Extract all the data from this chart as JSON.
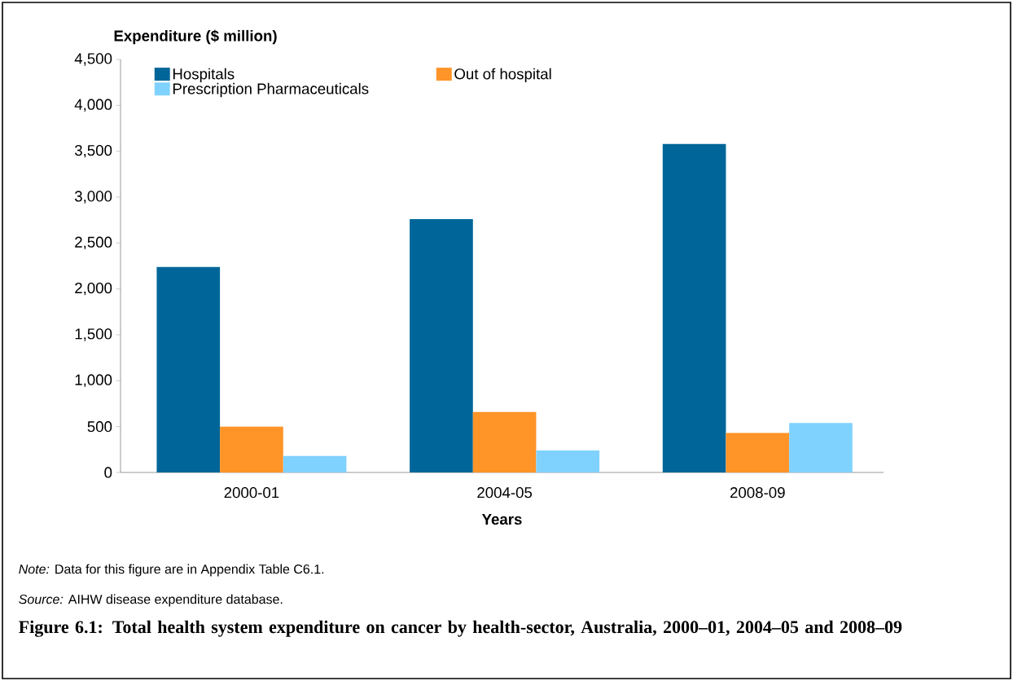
{
  "chart_data": {
    "type": "bar",
    "title": "Figure 6.1: Total health system expenditure on cancer by health-sector, Australia, 2000–01, 2004–05 and 2008–09",
    "xlabel": "Years",
    "ylabel": "Expenditure ($ million)",
    "categories": [
      "2000-01",
      "2004-05",
      "2008-09"
    ],
    "series": [
      {
        "name": "Hospitals",
        "color": "#006699",
        "values": [
          2240,
          2760,
          3580
        ]
      },
      {
        "name": "Out of hospital",
        "color": "#ff9428",
        "values": [
          500,
          660,
          430
        ]
      },
      {
        "name": "Prescription Pharmaceuticals",
        "color": "#80d2fe",
        "values": [
          180,
          240,
          540
        ]
      }
    ],
    "ylim": [
      0,
      4500
    ],
    "yticks": [
      {
        "value": 0,
        "label": "0"
      },
      {
        "value": 500,
        "label": "500"
      },
      {
        "value": 1000,
        "label": "1,000"
      },
      {
        "value": 1500,
        "label": "1,500"
      },
      {
        "value": 2000,
        "label": "2,000"
      },
      {
        "value": 2500,
        "label": "2,500"
      },
      {
        "value": 3000,
        "label": "3,000"
      },
      {
        "value": 3500,
        "label": "3,500"
      },
      {
        "value": 4000,
        "label": "4,000"
      },
      {
        "value": 4500,
        "label": "4,500"
      }
    ],
    "legend": "top left",
    "grid": false,
    "annotations": [
      "*Note:* Data for this figure are in Appendix Table C6.1.",
      "*Source:* AIHW disease expenditure database."
    ]
  }
}
